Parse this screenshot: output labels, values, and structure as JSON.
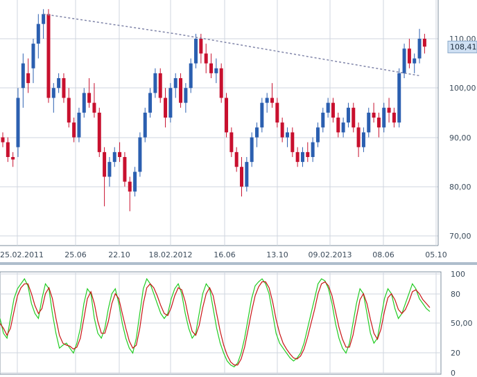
{
  "chart_data": [
    {
      "type": "candlestick",
      "title": "",
      "x_labels": [
        "25.02.2011",
        "25.06",
        "22.10",
        "18.02.2012",
        "16.06",
        "13.10",
        "09.02.2013",
        "08.06",
        "05.10"
      ],
      "y_ticks": [
        "110,00",
        "100,00",
        "90,00",
        "80,00",
        "70,00"
      ],
      "ylim": [
        68,
        118
      ],
      "grid": true,
      "last_price": "108,41",
      "colors": {
        "up": "#2b5fb0",
        "down": "#c8102e",
        "trendline": "#7f84a8",
        "grid": "#cfd6df",
        "badge_bg": "#cfe0f3"
      },
      "trendline": {
        "x": [
          8.0,
          34.0,
          82.0
        ],
        "y": [
          115.0,
          111.0,
          102.5
        ]
      },
      "ohlc": [
        [
          0.0,
          90.0,
          91.0,
          88.0,
          89.0
        ],
        [
          1.0,
          89.0,
          90.0,
          85.0,
          86.0
        ],
        [
          2.0,
          86.0,
          87.0,
          84.0,
          85.5
        ],
        [
          3.0,
          88.0,
          100.0,
          86.0,
          98.0
        ],
        [
          4.0,
          100.0,
          107.0,
          96.0,
          105.0
        ],
        [
          5.0,
          103.0,
          106.0,
          99.0,
          101.0
        ],
        [
          6.0,
          104.0,
          110.0,
          101.0,
          109.0
        ],
        [
          7.0,
          109.0,
          115.0,
          106.0,
          113.0
        ],
        [
          8.0,
          113.0,
          116.0,
          110.0,
          115.0
        ],
        [
          9.0,
          115.0,
          116.0,
          97.0,
          98.0
        ],
        [
          10.0,
          98.0,
          101.0,
          95.0,
          100.0
        ],
        [
          11.0,
          100.0,
          103.0,
          99.0,
          102.0
        ],
        [
          12.0,
          102.0,
          103.0,
          97.0,
          98.0
        ],
        [
          13.0,
          98.0,
          100.0,
          92.0,
          93.0
        ],
        [
          14.0,
          93.0,
          94.0,
          89.0,
          90.0
        ],
        [
          15.0,
          90.0,
          96.0,
          89.0,
          95.0
        ],
        [
          16.0,
          95.0,
          100.0,
          94.0,
          99.0
        ],
        [
          17.0,
          99.0,
          102.0,
          96.0,
          97.0
        ],
        [
          18.0,
          97.0,
          101.0,
          94.0,
          95.0
        ],
        [
          19.0,
          95.0,
          96.0,
          86.0,
          87.0
        ],
        [
          20.0,
          87.0,
          88.0,
          76.0,
          82.0
        ],
        [
          21.0,
          82.0,
          86.0,
          80.0,
          85.0
        ],
        [
          22.0,
          85.0,
          88.0,
          84.0,
          87.0
        ],
        [
          23.0,
          87.0,
          89.0,
          85.0,
          86.0
        ],
        [
          24.0,
          86.0,
          87.0,
          80.0,
          81.0
        ],
        [
          25.0,
          81.0,
          82.0,
          75.0,
          79.0
        ],
        [
          26.0,
          79.0,
          84.0,
          78.0,
          83.0
        ],
        [
          27.0,
          83.0,
          91.0,
          82.0,
          90.0
        ],
        [
          28.0,
          90.0,
          96.0,
          89.0,
          95.0
        ],
        [
          29.0,
          95.0,
          100.0,
          94.0,
          99.0
        ],
        [
          30.0,
          99.0,
          104.0,
          98.0,
          103.0
        ],
        [
          31.0,
          103.0,
          104.0,
          97.0,
          98.0
        ],
        [
          32.0,
          98.0,
          100.0,
          92.0,
          94.0
        ],
        [
          33.0,
          94.0,
          101.0,
          93.0,
          100.0
        ],
        [
          34.0,
          100.0,
          103.0,
          98.0,
          102.0
        ],
        [
          35.0,
          102.0,
          103.0,
          96.0,
          97.0
        ],
        [
          36.0,
          97.0,
          101.0,
          95.0,
          100.0
        ],
        [
          37.0,
          100.0,
          106.0,
          99.0,
          105.0
        ],
        [
          38.0,
          105.0,
          111.0,
          104.0,
          110.0
        ],
        [
          39.0,
          110.0,
          111.0,
          105.0,
          107.0
        ],
        [
          40.0,
          107.0,
          109.0,
          103.0,
          105.0
        ],
        [
          41.0,
          105.0,
          107.0,
          102.0,
          103.0
        ],
        [
          42.0,
          103.0,
          106.0,
          101.0,
          104.0
        ],
        [
          43.0,
          104.0,
          105.0,
          97.0,
          98.0
        ],
        [
          44.0,
          98.0,
          99.0,
          90.0,
          91.0
        ],
        [
          45.0,
          91.0,
          92.0,
          86.0,
          87.0
        ],
        [
          46.0,
          87.0,
          88.0,
          83.0,
          84.0
        ],
        [
          47.0,
          84.0,
          86.0,
          78.0,
          80.0
        ],
        [
          48.0,
          80.0,
          86.0,
          79.0,
          85.0
        ],
        [
          49.0,
          85.0,
          91.0,
          84.0,
          90.0
        ],
        [
          50.0,
          90.0,
          93.0,
          88.0,
          92.0
        ],
        [
          51.0,
          92.0,
          98.0,
          91.0,
          97.0
        ],
        [
          52.0,
          97.0,
          99.0,
          95.0,
          98.0
        ],
        [
          53.0,
          98.0,
          101.0,
          96.0,
          97.0
        ],
        [
          54.0,
          97.0,
          98.0,
          92.0,
          93.0
        ],
        [
          55.0,
          93.0,
          94.0,
          89.0,
          90.0
        ],
        [
          56.0,
          90.0,
          92.0,
          88.0,
          91.0
        ],
        [
          57.0,
          91.0,
          92.0,
          86.0,
          87.0
        ],
        [
          58.0,
          87.0,
          88.0,
          84.0,
          85.0
        ],
        [
          59.0,
          85.0,
          88.0,
          84.0,
          87.0
        ],
        [
          60.0,
          87.0,
          89.0,
          85.0,
          86.0
        ],
        [
          61.0,
          86.0,
          90.0,
          85.0,
          89.0
        ],
        [
          62.0,
          89.0,
          93.0,
          88.0,
          92.0
        ],
        [
          63.0,
          92.0,
          96.0,
          91.0,
          95.0
        ],
        [
          64.0,
          95.0,
          98.0,
          94.0,
          97.0
        ],
        [
          65.0,
          97.0,
          98.0,
          93.0,
          94.0
        ],
        [
          66.0,
          94.0,
          95.0,
          90.0,
          91.0
        ],
        [
          67.0,
          91.0,
          94.0,
          90.0,
          93.0
        ],
        [
          68.0,
          93.0,
          97.0,
          92.0,
          96.0
        ],
        [
          69.0,
          96.0,
          97.0,
          91.0,
          92.0
        ],
        [
          70.0,
          92.0,
          93.0,
          86.0,
          88.0
        ],
        [
          71.0,
          88.0,
          92.0,
          87.0,
          91.0
        ],
        [
          72.0,
          91.0,
          96.0,
          90.0,
          95.0
        ],
        [
          73.0,
          95.0,
          97.0,
          93.0,
          94.0
        ],
        [
          74.0,
          94.0,
          95.0,
          90.0,
          92.0
        ],
        [
          75.0,
          92.0,
          97.0,
          91.0,
          96.0
        ],
        [
          76.0,
          96.0,
          98.0,
          93.0,
          95.0
        ],
        [
          77.0,
          95.0,
          96.0,
          92.0,
          93.0
        ],
        [
          78.0,
          93.0,
          104.0,
          92.0,
          103.0
        ],
        [
          79.0,
          103.0,
          109.0,
          102.0,
          108.0
        ],
        [
          80.0,
          108.0,
          110.0,
          104.0,
          105.0
        ],
        [
          81.0,
          105.0,
          107.0,
          103.0,
          106.0
        ],
        [
          82.0,
          106.0,
          112.0,
          105.0,
          110.0
        ],
        [
          83.0,
          110.0,
          111.0,
          107.0,
          108.4
        ]
      ]
    },
    {
      "type": "line",
      "title": "",
      "y_ticks": [
        "100",
        "80",
        "50,00",
        "20",
        "0"
      ],
      "ylim": [
        0,
        100
      ],
      "grid": true,
      "series": [
        {
          "color": "#22cc22",
          "values": [
            55,
            40,
            35,
            55,
            75,
            85,
            90,
            95,
            88,
            70,
            60,
            55,
            75,
            90,
            85,
            60,
            40,
            25,
            28,
            30,
            25,
            20,
            30,
            45,
            70,
            85,
            80,
            55,
            40,
            35,
            45,
            65,
            80,
            85,
            70,
            50,
            35,
            25,
            20,
            35,
            60,
            85,
            95,
            90,
            80,
            70,
            60,
            55,
            60,
            75,
            85,
            90,
            80,
            60,
            45,
            35,
            40,
            60,
            80,
            90,
            85,
            65,
            45,
            30,
            20,
            12,
            8,
            6,
            10,
            20,
            35,
            55,
            75,
            88,
            92,
            95,
            90,
            80,
            60,
            40,
            30,
            25,
            20,
            15,
            12,
            15,
            20,
            30,
            45,
            60,
            75,
            90,
            95,
            93,
            85,
            70,
            50,
            35,
            25,
            20,
            30,
            50,
            70,
            85,
            80,
            60,
            40,
            30,
            35,
            55,
            75,
            85,
            80,
            65,
            55,
            60,
            70,
            80,
            90,
            85,
            75,
            70,
            65,
            62
          ]
        },
        {
          "color": "#c81414",
          "values": [
            50,
            45,
            38,
            45,
            62,
            78,
            86,
            90,
            90,
            80,
            68,
            60,
            65,
            80,
            86,
            75,
            55,
            38,
            30,
            28,
            27,
            24,
            26,
            35,
            55,
            75,
            82,
            70,
            52,
            40,
            40,
            52,
            70,
            80,
            75,
            60,
            45,
            32,
            25,
            28,
            45,
            70,
            86,
            90,
            86,
            78,
            68,
            60,
            58,
            66,
            78,
            86,
            84,
            72,
            55,
            42,
            38,
            48,
            66,
            80,
            86,
            78,
            60,
            42,
            28,
            18,
            11,
            8,
            8,
            14,
            26,
            44,
            62,
            78,
            87,
            92,
            92,
            86,
            72,
            54,
            40,
            30,
            24,
            19,
            15,
            14,
            17,
            24,
            36,
            50,
            64,
            80,
            90,
            92,
            88,
            78,
            62,
            46,
            34,
            26,
            26,
            38,
            56,
            74,
            80,
            70,
            54,
            40,
            34,
            44,
            62,
            76,
            80,
            74,
            64,
            60,
            64,
            72,
            82,
            84,
            80,
            74,
            70,
            66
          ]
        }
      ]
    }
  ]
}
